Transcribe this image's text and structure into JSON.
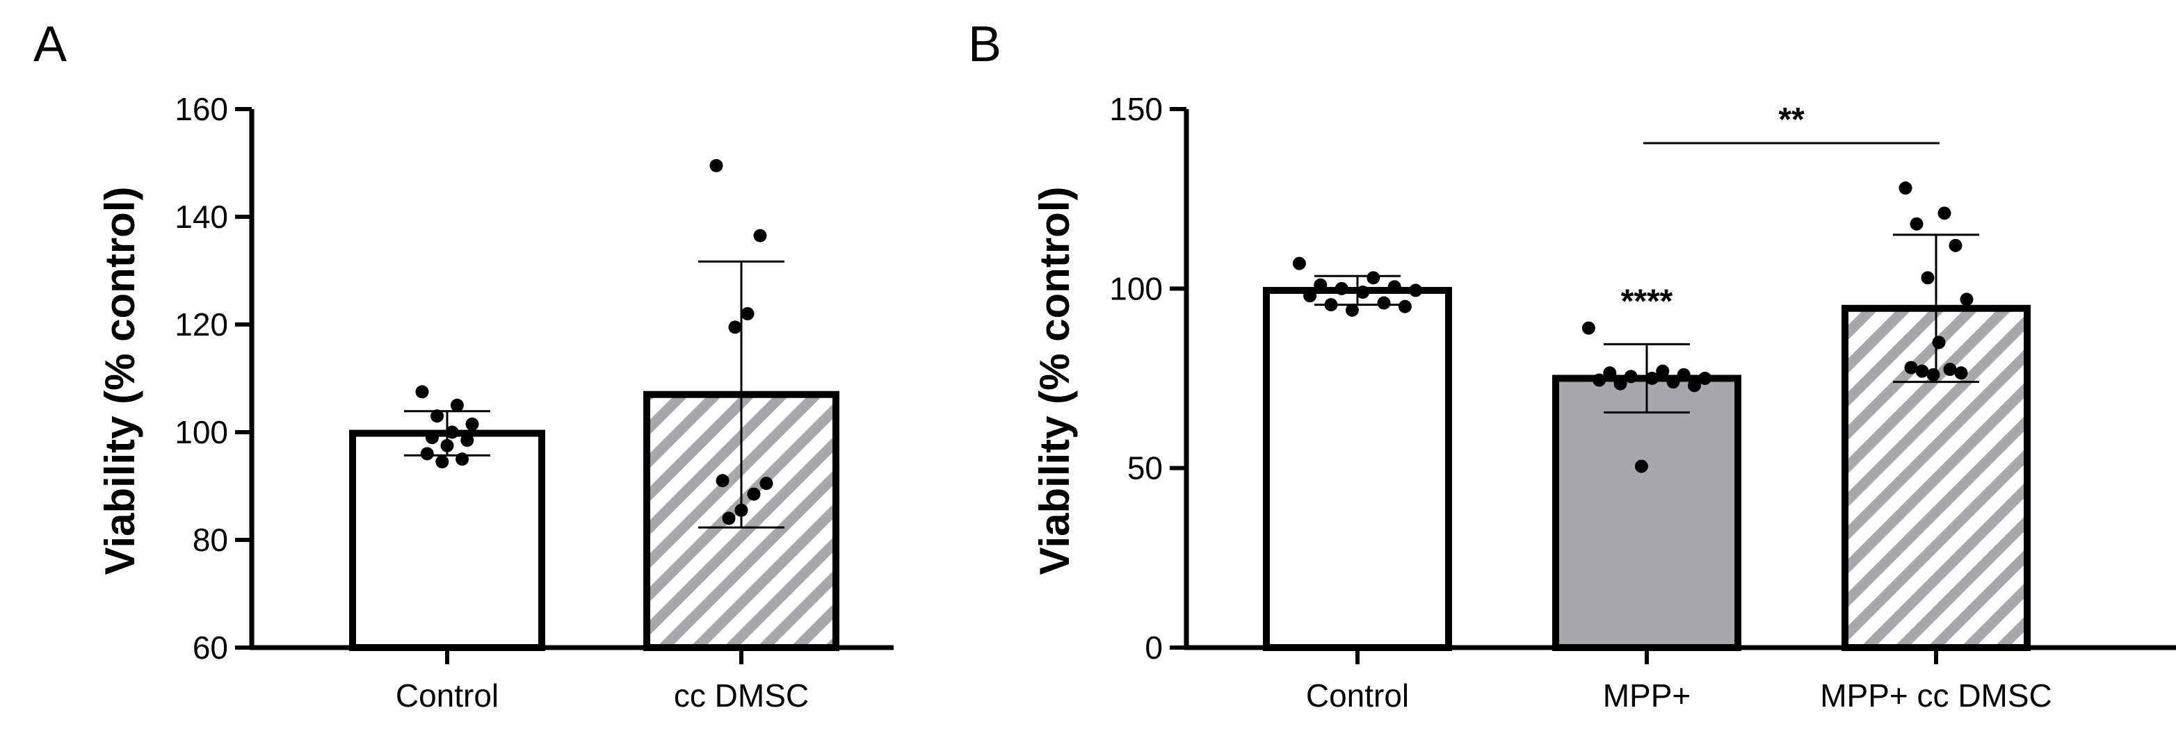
{
  "chart_data": [
    {
      "panel": "A",
      "type": "bar",
      "ylabel": "Viability (% control)",
      "ylim": [
        60,
        160
      ],
      "yticks": [
        "60",
        "80",
        "100",
        "120",
        "140",
        "160"
      ],
      "categories": [
        "Control",
        "cc DMSC"
      ],
      "bars": [
        {
          "label": "Control",
          "mean": 99.8,
          "sd": 4.1,
          "fill": "white",
          "points": [
            107.5,
            105.0,
            103.0,
            101.5,
            100.0,
            99.0,
            98.5,
            97.5,
            96.0,
            95.0,
            94.5
          ]
        },
        {
          "label": "cc DMSC",
          "mean": 107.0,
          "sd": 24.7,
          "fill": "hatched",
          "points": [
            149.5,
            136.5,
            122.0,
            119.5,
            91.0,
            90.5,
            88.5,
            85.5,
            84.0
          ]
        }
      ],
      "significance": []
    },
    {
      "panel": "B",
      "type": "bar",
      "ylabel": "Viability (% control)",
      "ylim": [
        0,
        150
      ],
      "yticks": [
        "0",
        "50",
        "100",
        "150"
      ],
      "categories": [
        "Control",
        "MPP+",
        "MPP+ cc DMSC"
      ],
      "bars": [
        {
          "label": "Control",
          "mean": 99.5,
          "sd": 4.0,
          "fill": "white",
          "points": [
            107.0,
            103.0,
            101.0,
            100.5,
            100.0,
            99.5,
            99.0,
            98.0,
            96.0,
            95.5,
            95.0,
            94.0
          ]
        },
        {
          "label": "MPP+",
          "mean": 75.0,
          "sd": 9.5,
          "fill": "gray",
          "points": [
            89.0,
            77.0,
            76.5,
            76.0,
            75.5,
            75.0,
            75.0,
            74.5,
            74.0,
            73.5,
            73.0,
            50.5
          ]
        },
        {
          "label": "MPP+ cc DMSC",
          "mean": 94.5,
          "sd": 20.5,
          "fill": "hatched",
          "points": [
            128.0,
            121.0,
            118.0,
            112.0,
            103.0,
            97.0,
            85.0,
            78.0,
            77.5,
            77.0,
            76.5,
            76.0
          ]
        }
      ],
      "significance": [
        {
          "label": "****",
          "type": "above_bar",
          "bar": 1
        },
        {
          "label": "**",
          "type": "bracket",
          "from": 1,
          "to": 2
        }
      ]
    }
  ],
  "colors": {
    "gray_bar": "#a8a7ab",
    "hatch_stripe": "#a8a7ab",
    "ink": "#000000"
  }
}
